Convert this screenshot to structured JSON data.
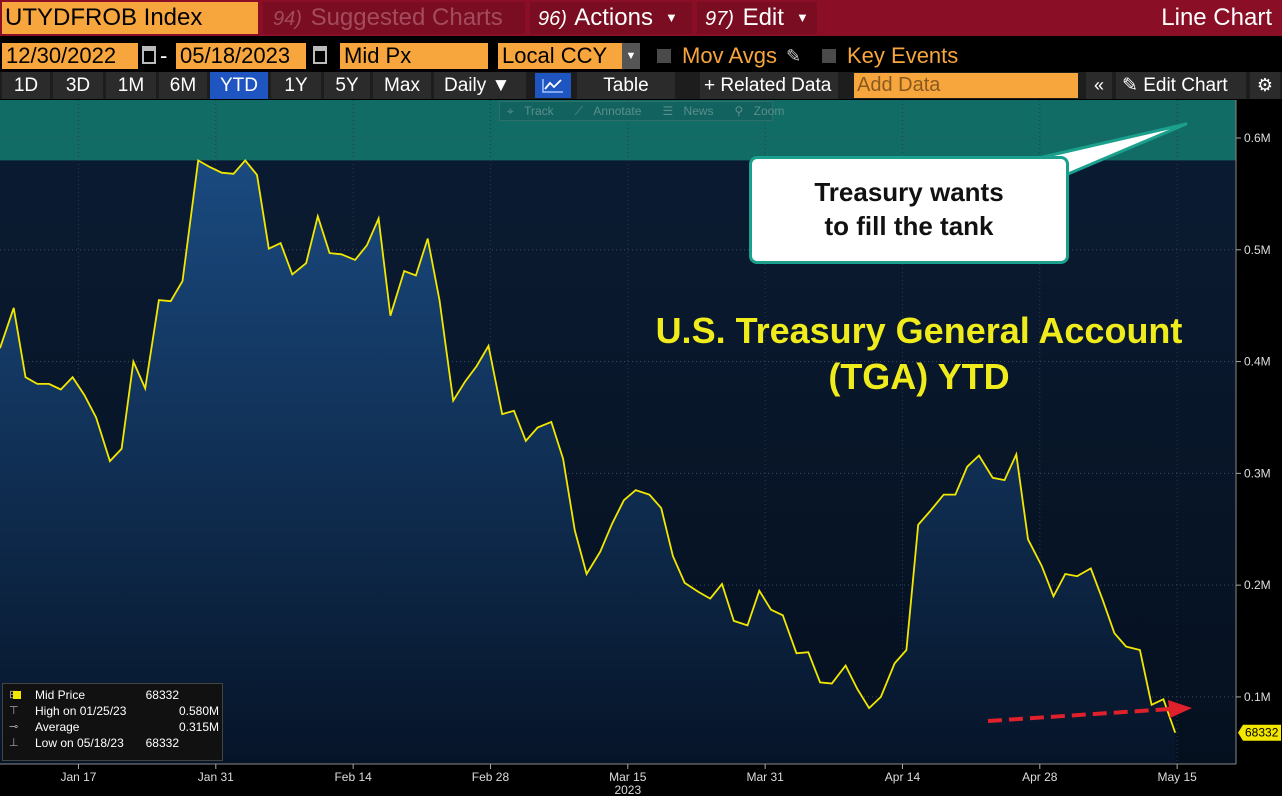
{
  "titlebar": {
    "ticker": "UTYDFROB Index",
    "suggested_num": "94)",
    "suggested_label": "Suggested Charts",
    "actions_num": "96)",
    "actions_label": "Actions",
    "edit_num": "97)",
    "edit_label": "Edit",
    "chart_type": "Line Chart"
  },
  "datebar": {
    "start_date": "12/30/2022",
    "separator": "-",
    "end_date": "05/18/2023",
    "field": "Mid Px",
    "currency": "Local CCY",
    "mov_avgs": "Mov Avgs",
    "key_events": "Key Events"
  },
  "toolbar": {
    "ranges": [
      "1D",
      "3D",
      "1M",
      "6M",
      "YTD",
      "1Y",
      "5Y",
      "Max"
    ],
    "active_range": "YTD",
    "frequency": "Daily",
    "table_label": "Table",
    "related_label": "Related Data",
    "add_data_placeholder": "Add Data",
    "collapse_label": "«",
    "edit_chart_label": "Edit Chart"
  },
  "mini_tools": [
    "Track",
    "Annotate",
    "News",
    "Zoom"
  ],
  "annotations": {
    "callout_line1": "Treasury wants",
    "callout_line2": "to fill the tank",
    "title_line1": "U.S. Treasury General Account",
    "title_line2": "(TGA) YTD"
  },
  "legend": {
    "series_label": "Mid Price",
    "series_value": "68332",
    "high_label": "High on 01/25/23",
    "high_value": "0.580M",
    "avg_label": "Average",
    "avg_value": "0.315M",
    "low_label": "Low on 05/18/23",
    "low_value": "68332"
  },
  "colors": {
    "line": "#f3e700",
    "area_top": "#1a4a80",
    "area_bottom": "#061428",
    "band": "#147a70",
    "arrow": "#e0202a",
    "last_price_tag": "#f3e700"
  },
  "chart_data": {
    "type": "area",
    "series": [
      {
        "name": "Mid Price",
        "values": [
          [
            0.0,
            0.412
          ],
          [
            1.4,
            0.448
          ],
          [
            2.6,
            0.386
          ],
          [
            3.8,
            0.38
          ],
          [
            5.0,
            0.38
          ],
          [
            6.2,
            0.375
          ],
          [
            7.4,
            0.386
          ],
          [
            8.6,
            0.37
          ],
          [
            9.8,
            0.35
          ],
          [
            11.2,
            0.311
          ],
          [
            12.4,
            0.322
          ],
          [
            13.6,
            0.4
          ],
          [
            14.8,
            0.376
          ],
          [
            16.2,
            0.455
          ],
          [
            17.4,
            0.454
          ],
          [
            18.6,
            0.472
          ],
          [
            20.2,
            0.58
          ],
          [
            21.4,
            0.574
          ],
          [
            22.6,
            0.569
          ],
          [
            23.8,
            0.568
          ],
          [
            25.0,
            0.58
          ],
          [
            26.2,
            0.567
          ],
          [
            27.4,
            0.501
          ],
          [
            28.6,
            0.506
          ],
          [
            29.8,
            0.478
          ],
          [
            31.2,
            0.488
          ],
          [
            32.4,
            0.53
          ],
          [
            33.6,
            0.497
          ],
          [
            34.8,
            0.496
          ],
          [
            36.2,
            0.491
          ],
          [
            37.4,
            0.504
          ],
          [
            38.6,
            0.528
          ],
          [
            39.8,
            0.441
          ],
          [
            41.2,
            0.481
          ],
          [
            42.4,
            0.477
          ],
          [
            43.6,
            0.51
          ],
          [
            44.8,
            0.455
          ],
          [
            46.2,
            0.365
          ],
          [
            47.4,
            0.382
          ],
          [
            48.6,
            0.396
          ],
          [
            49.8,
            0.414
          ],
          [
            51.2,
            0.353
          ],
          [
            52.4,
            0.356
          ],
          [
            53.6,
            0.329
          ],
          [
            54.8,
            0.341
          ],
          [
            56.2,
            0.346
          ],
          [
            57.4,
            0.313
          ],
          [
            58.6,
            0.249
          ],
          [
            59.8,
            0.21
          ],
          [
            61.2,
            0.23
          ],
          [
            62.4,
            0.255
          ],
          [
            63.6,
            0.276
          ],
          [
            64.8,
            0.285
          ],
          [
            66.2,
            0.281
          ],
          [
            67.4,
            0.269
          ],
          [
            68.6,
            0.226
          ],
          [
            69.8,
            0.202
          ],
          [
            71.2,
            0.194
          ],
          [
            72.4,
            0.188
          ],
          [
            73.6,
            0.201
          ],
          [
            74.8,
            0.168
          ],
          [
            76.2,
            0.164
          ],
          [
            77.4,
            0.195
          ],
          [
            78.6,
            0.178
          ],
          [
            79.8,
            0.173
          ],
          [
            81.2,
            0.139
          ],
          [
            82.4,
            0.14
          ],
          [
            83.6,
            0.113
          ],
          [
            84.8,
            0.112
          ],
          [
            86.2,
            0.128
          ],
          [
            87.4,
            0.107
          ],
          [
            88.6,
            0.09
          ],
          [
            89.8,
            0.1
          ],
          [
            91.2,
            0.13
          ],
          [
            92.4,
            0.142
          ],
          [
            93.6,
            0.254
          ],
          [
            94.8,
            0.266
          ],
          [
            96.2,
            0.281
          ],
          [
            97.4,
            0.281
          ],
          [
            98.6,
            0.306
          ],
          [
            99.8,
            0.316
          ],
          [
            101.2,
            0.296
          ],
          [
            102.4,
            0.294
          ],
          [
            103.6,
            0.317
          ],
          [
            104.8,
            0.241
          ],
          [
            106.2,
            0.217
          ],
          [
            107.4,
            0.19
          ],
          [
            108.6,
            0.21
          ],
          [
            109.8,
            0.208
          ],
          [
            111.2,
            0.215
          ],
          [
            112.4,
            0.187
          ],
          [
            113.6,
            0.157
          ],
          [
            114.8,
            0.145
          ],
          [
            116.2,
            0.142
          ],
          [
            117.4,
            0.093
          ],
          [
            118.6,
            0.098
          ],
          [
            119.8,
            0.068
          ]
        ]
      }
    ],
    "x_tick_labels": [
      {
        "x": 8,
        "label": "Jan 17"
      },
      {
        "x": 22,
        "label": "Jan 31"
      },
      {
        "x": 36,
        "label": "Feb 14"
      },
      {
        "x": 50,
        "label": "Feb 28"
      },
      {
        "x": 64,
        "label": "Mar 15"
      },
      {
        "x": 78,
        "label": "Mar 31"
      },
      {
        "x": 92,
        "label": "Apr 14"
      },
      {
        "x": 106,
        "label": "Apr 28"
      },
      {
        "x": 120,
        "label": "May 15"
      }
    ],
    "x_year_label": {
      "x": 64,
      "label": "2023"
    },
    "xlim": [
      0,
      126
    ],
    "y_ticks": [
      0.1,
      0.2,
      0.3,
      0.4,
      0.5,
      0.6
    ],
    "y_tick_labels": [
      "0.1M",
      "0.2M",
      "0.3M",
      "0.4M",
      "0.5M",
      "0.6M"
    ],
    "ylim": [
      0.04,
      0.634
    ],
    "y_axis_side": "right",
    "last_value_label": "68332",
    "grid": true,
    "highlight_band_above": 0.58
  }
}
